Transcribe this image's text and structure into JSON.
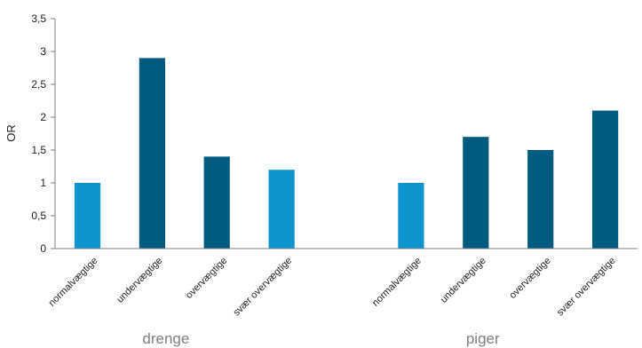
{
  "chart_data": {
    "type": "bar",
    "title": "",
    "xlabel": "",
    "ylabel": "OR",
    "ylim": [
      0,
      3.5
    ],
    "yticks": [
      "0",
      "0,5",
      "1",
      "1,5",
      "2",
      "2,5",
      "3",
      "3,5"
    ],
    "grid": false,
    "groups": [
      {
        "name": "drenge",
        "bars": [
          {
            "category": "normalvægtige",
            "value": 1.0,
            "color": "#0e95cf"
          },
          {
            "category": "undervægtige",
            "value": 2.9,
            "color": "#005b7f"
          },
          {
            "category": "overvægtige",
            "value": 1.4,
            "color": "#005b7f"
          },
          {
            "category": "svær overvægtige",
            "value": 1.2,
            "color": "#0e95cf"
          }
        ]
      },
      {
        "name": "piger",
        "bars": [
          {
            "category": "normalvægtige",
            "value": 1.0,
            "color": "#0e95cf"
          },
          {
            "category": "undervægtige",
            "value": 1.7,
            "color": "#005b7f"
          },
          {
            "category": "overvægtige",
            "value": 1.5,
            "color": "#005b7f"
          },
          {
            "category": "svær overvægtige",
            "value": 2.1,
            "color": "#005b7f"
          }
        ]
      }
    ]
  }
}
